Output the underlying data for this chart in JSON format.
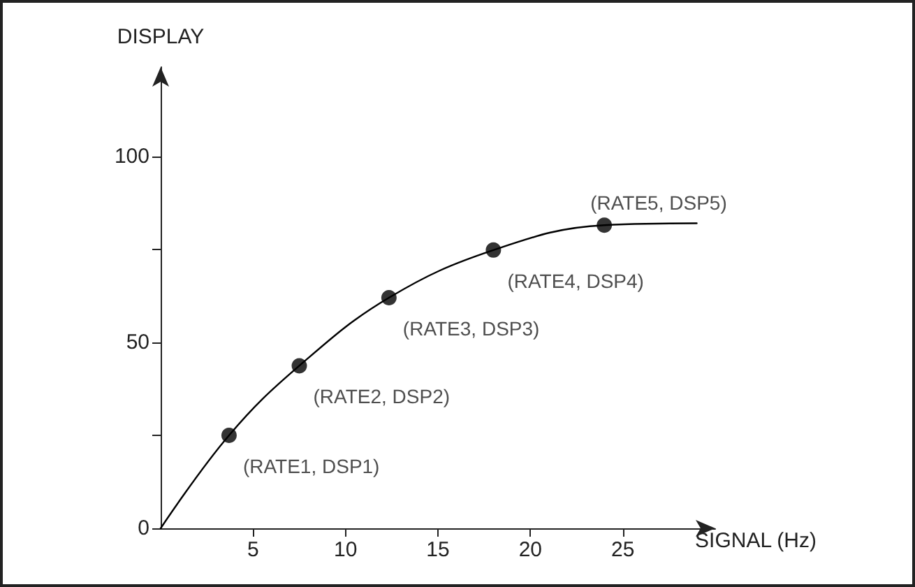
{
  "chart_data": {
    "type": "line",
    "xlabel": "SIGNAL (Hz)",
    "ylabel": "DISPLAY",
    "xlim": [
      0,
      30
    ],
    "xticks": [
      5,
      10,
      15,
      20,
      25
    ],
    "ylim": [
      0,
      124
    ],
    "yticks": [
      0,
      {
        "value": 25,
        "label": null
      },
      50,
      {
        "value": 75,
        "label": null
      },
      100
    ],
    "grid": false,
    "series": [
      {
        "color": "#000000",
        "marker": "none",
        "line_style": "solid",
        "x": [
          0,
          3.7,
          7.5,
          12.35,
          18,
          24,
          29
        ],
        "values": [
          0,
          25,
          43.7,
          62,
          74.8,
          81.5,
          82
        ]
      },
      {
        "type": "scatter",
        "color": "#000000",
        "marker": "circle",
        "x": [
          3.7,
          7.5,
          12.35,
          18,
          24
        ],
        "values": [
          25,
          43.7,
          62,
          74.8,
          81.5
        ]
      }
    ],
    "annotations": [
      {
        "text": "(RATE1, DSP1)",
        "x": 3.7,
        "y": 25
      },
      {
        "text": "(RATE2, DSP2)",
        "x": 7.5,
        "y": 43.7
      },
      {
        "text": "(RATE3, DSP3)",
        "x": 12.35,
        "y": 62
      },
      {
        "text": "(RATE4, DSP4)",
        "x": 18,
        "y": 74.8
      },
      {
        "text": "(RATE5, DSP5)",
        "x": 24,
        "y": 81.5
      }
    ]
  }
}
